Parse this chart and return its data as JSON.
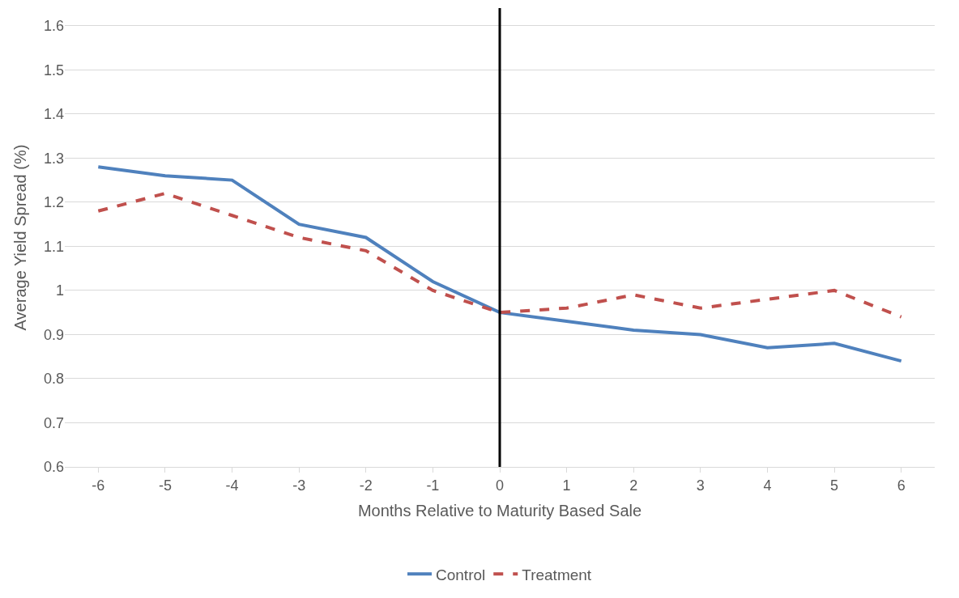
{
  "chart_data": {
    "type": "line",
    "xlabel": "Months Relative to Maturity Based Sale",
    "ylabel": "Average Yield Spread (%)",
    "x": [
      -6,
      -5,
      -4,
      -3,
      -2,
      -1,
      0,
      1,
      2,
      3,
      4,
      5,
      6
    ],
    "series": [
      {
        "name": "Control",
        "color": "#4f81bd",
        "line_style": "solid",
        "values": [
          1.28,
          1.26,
          1.25,
          1.15,
          1.12,
          1.02,
          0.95,
          0.93,
          0.91,
          0.9,
          0.87,
          0.88,
          0.84
        ]
      },
      {
        "name": "Treatment",
        "color": "#c0504d",
        "line_style": "dashed",
        "values": [
          1.18,
          1.22,
          1.17,
          1.12,
          1.09,
          1.0,
          0.95,
          0.96,
          0.99,
          0.96,
          0.98,
          1.0,
          0.94
        ]
      }
    ],
    "xlim": [
      -6.5,
      6.5
    ],
    "xticks": [
      -6,
      -5,
      -4,
      -3,
      -2,
      -1,
      0,
      1,
      2,
      3,
      4,
      5,
      6
    ],
    "ylim": [
      0.6,
      1.64
    ],
    "yticks": [
      0.6,
      0.7,
      0.8,
      0.9,
      1,
      1.1,
      1.2,
      1.3,
      1.4,
      1.5,
      1.6
    ],
    "ref_lines": [
      {
        "axis": "x",
        "value": 0,
        "color": "#000000"
      }
    ],
    "grid": "y",
    "legend": "bottom",
    "marker": "none"
  }
}
